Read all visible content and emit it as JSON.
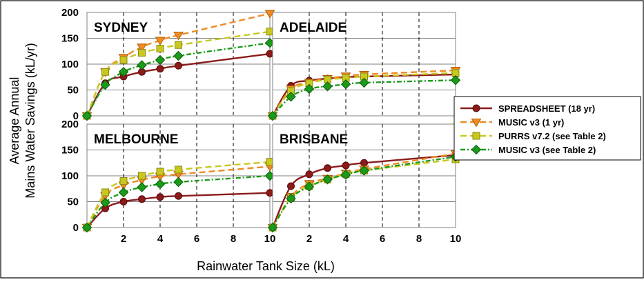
{
  "chart_data": {
    "type": "line",
    "ylabel_lines": [
      "Average Annual",
      "Mains Water Savings (kL/yr)"
    ],
    "xlabel": "Rainwater Tank Size (kL)",
    "x_ticks": [
      2,
      4,
      6,
      8,
      10
    ],
    "y_ticks": [
      0,
      50,
      100,
      150,
      200
    ],
    "xlim": [
      0,
      10
    ],
    "ylim": [
      0,
      200
    ],
    "grid": "vertical dashed at x ticks, horizontal solid at y ticks",
    "legend_position": "right",
    "series_styles": [
      {
        "name": "SPREADSHEET (18 yr)",
        "color": "#8b1a1a",
        "dash": "solid",
        "marker": "circle"
      },
      {
        "name": "MUSIC v3 (1 yr)",
        "color": "#f08a24",
        "dash": "dashed",
        "marker": "triangle-down"
      },
      {
        "name": "PURRS v7.2 (see Table 2)",
        "color": "#c8c820",
        "dash": "dashed",
        "marker": "square"
      },
      {
        "name": "MUSIC v3 (see Table 2)",
        "color": "#1a9b1a",
        "dash": "dash-dot",
        "marker": "diamond"
      }
    ],
    "panels": [
      {
        "title": "SYDNEY",
        "series": [
          {
            "name": "SPREADSHEET (18 yr)",
            "x": [
              0,
              1,
              2,
              3,
              4,
              5,
              10
            ],
            "values": [
              0,
              63,
              76,
              85,
              91,
              97,
              120
            ]
          },
          {
            "name": "MUSIC v3 (1 yr)",
            "x": [
              0,
              1,
              2,
              3,
              4,
              5,
              10
            ],
            "values": [
              0,
              85,
              113,
              133,
              146,
              156,
              198
            ]
          },
          {
            "name": "PURRS v7.2 (see Table 2)",
            "x": [
              0,
              1,
              2,
              3,
              4,
              5,
              10
            ],
            "values": [
              0,
              85,
              108,
              122,
              130,
              137,
              163
            ]
          },
          {
            "name": "MUSIC v3 (see Table 2)",
            "x": [
              0,
              1,
              2,
              3,
              4,
              5,
              10
            ],
            "values": [
              0,
              60,
              85,
              98,
              108,
              116,
              141
            ]
          }
        ]
      },
      {
        "title": "ADELAIDE",
        "series": [
          {
            "name": "SPREADSHEET (18 yr)",
            "x": [
              0,
              1,
              2,
              3,
              4,
              5,
              10
            ],
            "values": [
              0,
              58,
              68,
              72,
              75,
              76,
              80
            ]
          },
          {
            "name": "MUSIC v3 (1 yr)",
            "x": [
              0,
              1,
              2,
              3,
              4,
              5,
              10
            ],
            "values": [
              0,
              52,
              65,
              72,
              77,
              80,
              88
            ]
          },
          {
            "name": "PURRS v7.2 (see Table 2)",
            "x": [
              0,
              1,
              2,
              3,
              4,
              5,
              10
            ],
            "values": [
              0,
              48,
              63,
              70,
              73,
              76,
              83
            ]
          },
          {
            "name": "MUSIC v3 (see Table 2)",
            "x": [
              0,
              1,
              2,
              3,
              4,
              5,
              10
            ],
            "values": [
              0,
              37,
              52,
              57,
              61,
              64,
              69
            ]
          }
        ]
      },
      {
        "title": "MELBOURNE",
        "series": [
          {
            "name": "SPREADSHEET (18 yr)",
            "x": [
              0,
              1,
              2,
              3,
              4,
              5,
              10
            ],
            "values": [
              0,
              37,
              50,
              55,
              59,
              61,
              67
            ]
          },
          {
            "name": "MUSIC v3 (1 yr)",
            "x": [
              0,
              1,
              2,
              3,
              4,
              5,
              10
            ],
            "values": [
              0,
              62,
              82,
              92,
              99,
              103,
              118
            ]
          },
          {
            "name": "PURRS v7.2 (see Table 2)",
            "x": [
              0,
              1,
              2,
              3,
              4,
              5,
              10
            ],
            "values": [
              0,
              68,
              90,
              100,
              108,
              112,
              127
            ]
          },
          {
            "name": "MUSIC v3 (see Table 2)",
            "x": [
              0,
              1,
              2,
              3,
              4,
              5,
              10
            ],
            "values": [
              0,
              48,
              68,
              78,
              84,
              88,
              100
            ]
          }
        ]
      },
      {
        "title": "BRISBANE",
        "series": [
          {
            "name": "SPREADSHEET (18 yr)",
            "x": [
              0,
              1,
              2,
              3,
              4,
              5,
              10
            ],
            "values": [
              0,
              80,
              103,
              115,
              120,
              125,
              140
            ]
          },
          {
            "name": "MUSIC v3 (1 yr)",
            "x": [
              0,
              1,
              2,
              3,
              4,
              5,
              10
            ],
            "values": [
              0,
              60,
              85,
              95,
              105,
              113,
              143
            ]
          },
          {
            "name": "PURRS v7.2 (see Table 2)",
            "x": [
              0,
              1,
              2,
              3,
              4,
              5,
              10
            ],
            "values": [
              0,
              58,
              80,
              93,
              103,
              110,
              132
            ]
          },
          {
            "name": "MUSIC v3 (see Table 2)",
            "x": [
              0,
              1,
              2,
              3,
              4,
              5,
              10
            ],
            "values": [
              0,
              56,
              79,
              93,
              102,
              110,
              137
            ]
          }
        ]
      }
    ]
  }
}
